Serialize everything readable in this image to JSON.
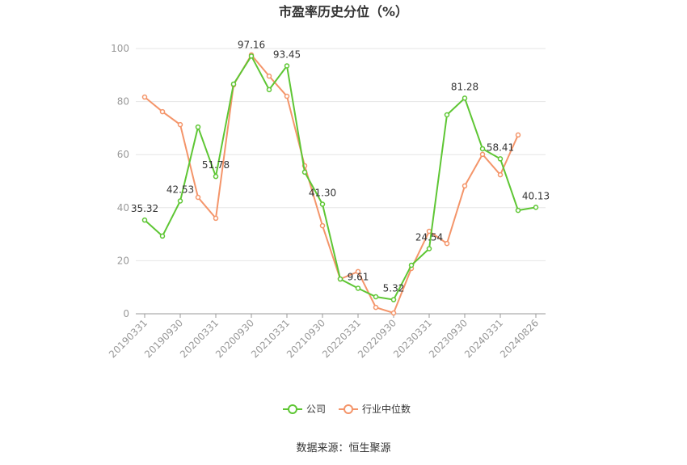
{
  "chart_data": {
    "type": "line",
    "title": "市盈率历史分位（%）",
    "source": "数据来源：恒生聚源",
    "categories": [
      "20190331",
      null,
      "20190930",
      null,
      "20200331",
      null,
      "20200930",
      null,
      "20210331",
      null,
      "20210930",
      null,
      "20220331",
      null,
      "20220930",
      null,
      "20230331",
      null,
      "20230930",
      null,
      "20240331",
      null,
      "20240826"
    ],
    "series": [
      {
        "name": "公司",
        "color": "#5ec634",
        "values": [
          35.32,
          29.3,
          42.53,
          70.4,
          51.78,
          86.6,
          97.16,
          84.5,
          93.45,
          53.4,
          41.3,
          13.1,
          9.61,
          6.4,
          5.32,
          18.3,
          24.54,
          75.0,
          81.28,
          62.2,
          58.41,
          39.0,
          40.13
        ],
        "value_labels": [
          "35.32",
          null,
          "42.53",
          null,
          "51.78",
          null,
          "97.16",
          null,
          "93.45",
          null,
          "41.30",
          null,
          "9.61",
          null,
          "5.32",
          null,
          "24.54",
          null,
          "81.28",
          null,
          "58.41",
          null,
          "40.13"
        ]
      },
      {
        "name": "行业中位数",
        "color": "#f4956a",
        "values": [
          81.7,
          76.2,
          71.3,
          43.9,
          36.0,
          86.3,
          97.6,
          89.6,
          82.0,
          55.8,
          33.2,
          13.1,
          15.9,
          2.4,
          0.3,
          17.1,
          31.1,
          26.5,
          48.2,
          60.1,
          52.4,
          67.4,
          null
        ]
      }
    ],
    "ylim": [
      0,
      100
    ],
    "yticks": [
      0,
      20,
      40,
      60,
      80,
      100
    ],
    "grid": true,
    "legend": "bottom"
  }
}
